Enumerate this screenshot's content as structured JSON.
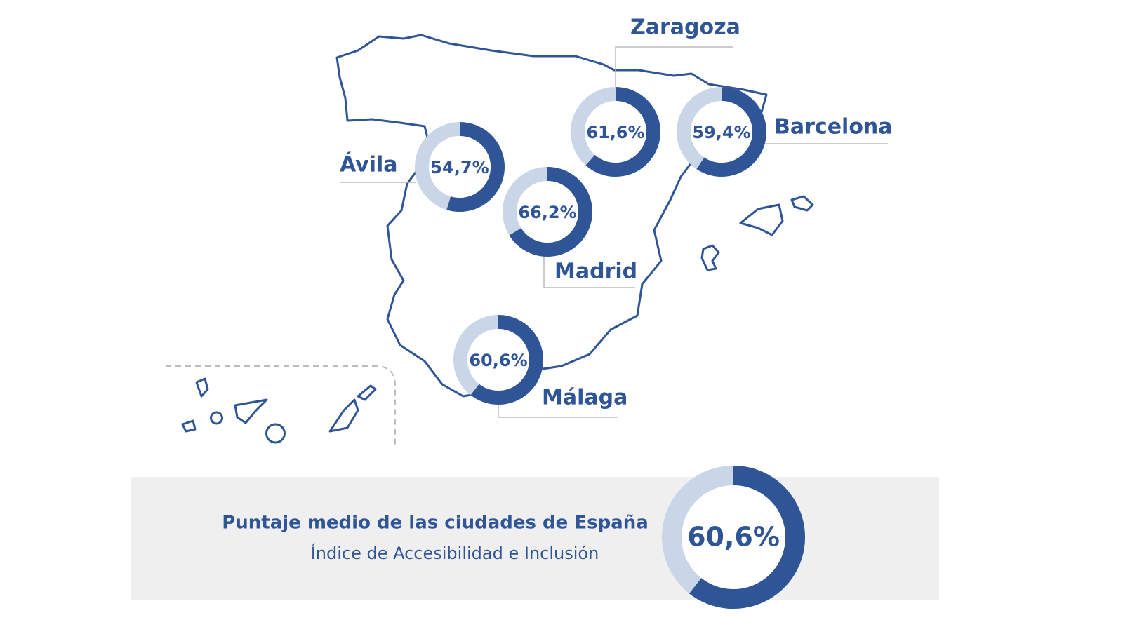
{
  "cities": {
    "names": [
      "Zaragoza",
      "Barcelona",
      "Ávila",
      "Madrid",
      "Málaga"
    ],
    "values": [
      61.6,
      59.4,
      54.7,
      66.2,
      60.6
    ],
    "value_labels": [
      "61,6%",
      "59,4%",
      "54,7%",
      "66,2%",
      "60,6%"
    ]
  },
  "summary": {
    "title": "Puntaje medio de las ciudades de España",
    "subtitle": "Índice de Accesibilidad e Inclusión",
    "value": 60.6,
    "value_label": "60,6%"
  }
}
